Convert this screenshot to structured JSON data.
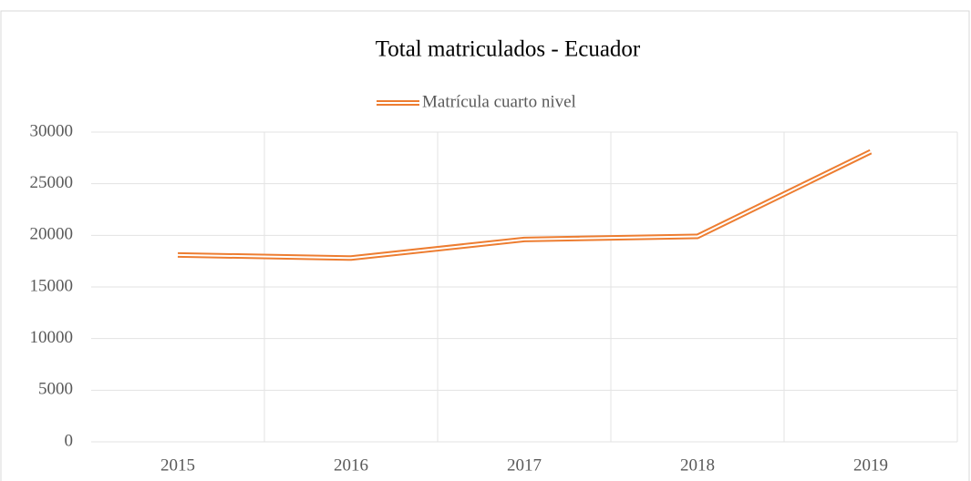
{
  "chart_data": {
    "type": "line",
    "title": "Total matriculados - Ecuador",
    "categories": [
      "2015",
      "2016",
      "2017",
      "2018",
      "2019"
    ],
    "series": [
      {
        "name": "Matrícula cuarto nivel",
        "color": "#ed7d31",
        "values": [
          18100,
          17800,
          19600,
          19900,
          28100
        ]
      }
    ],
    "ylim": [
      0,
      30000
    ],
    "yticks": [
      0,
      5000,
      10000,
      15000,
      20000,
      25000,
      30000
    ],
    "grid": true,
    "legend": "top"
  }
}
